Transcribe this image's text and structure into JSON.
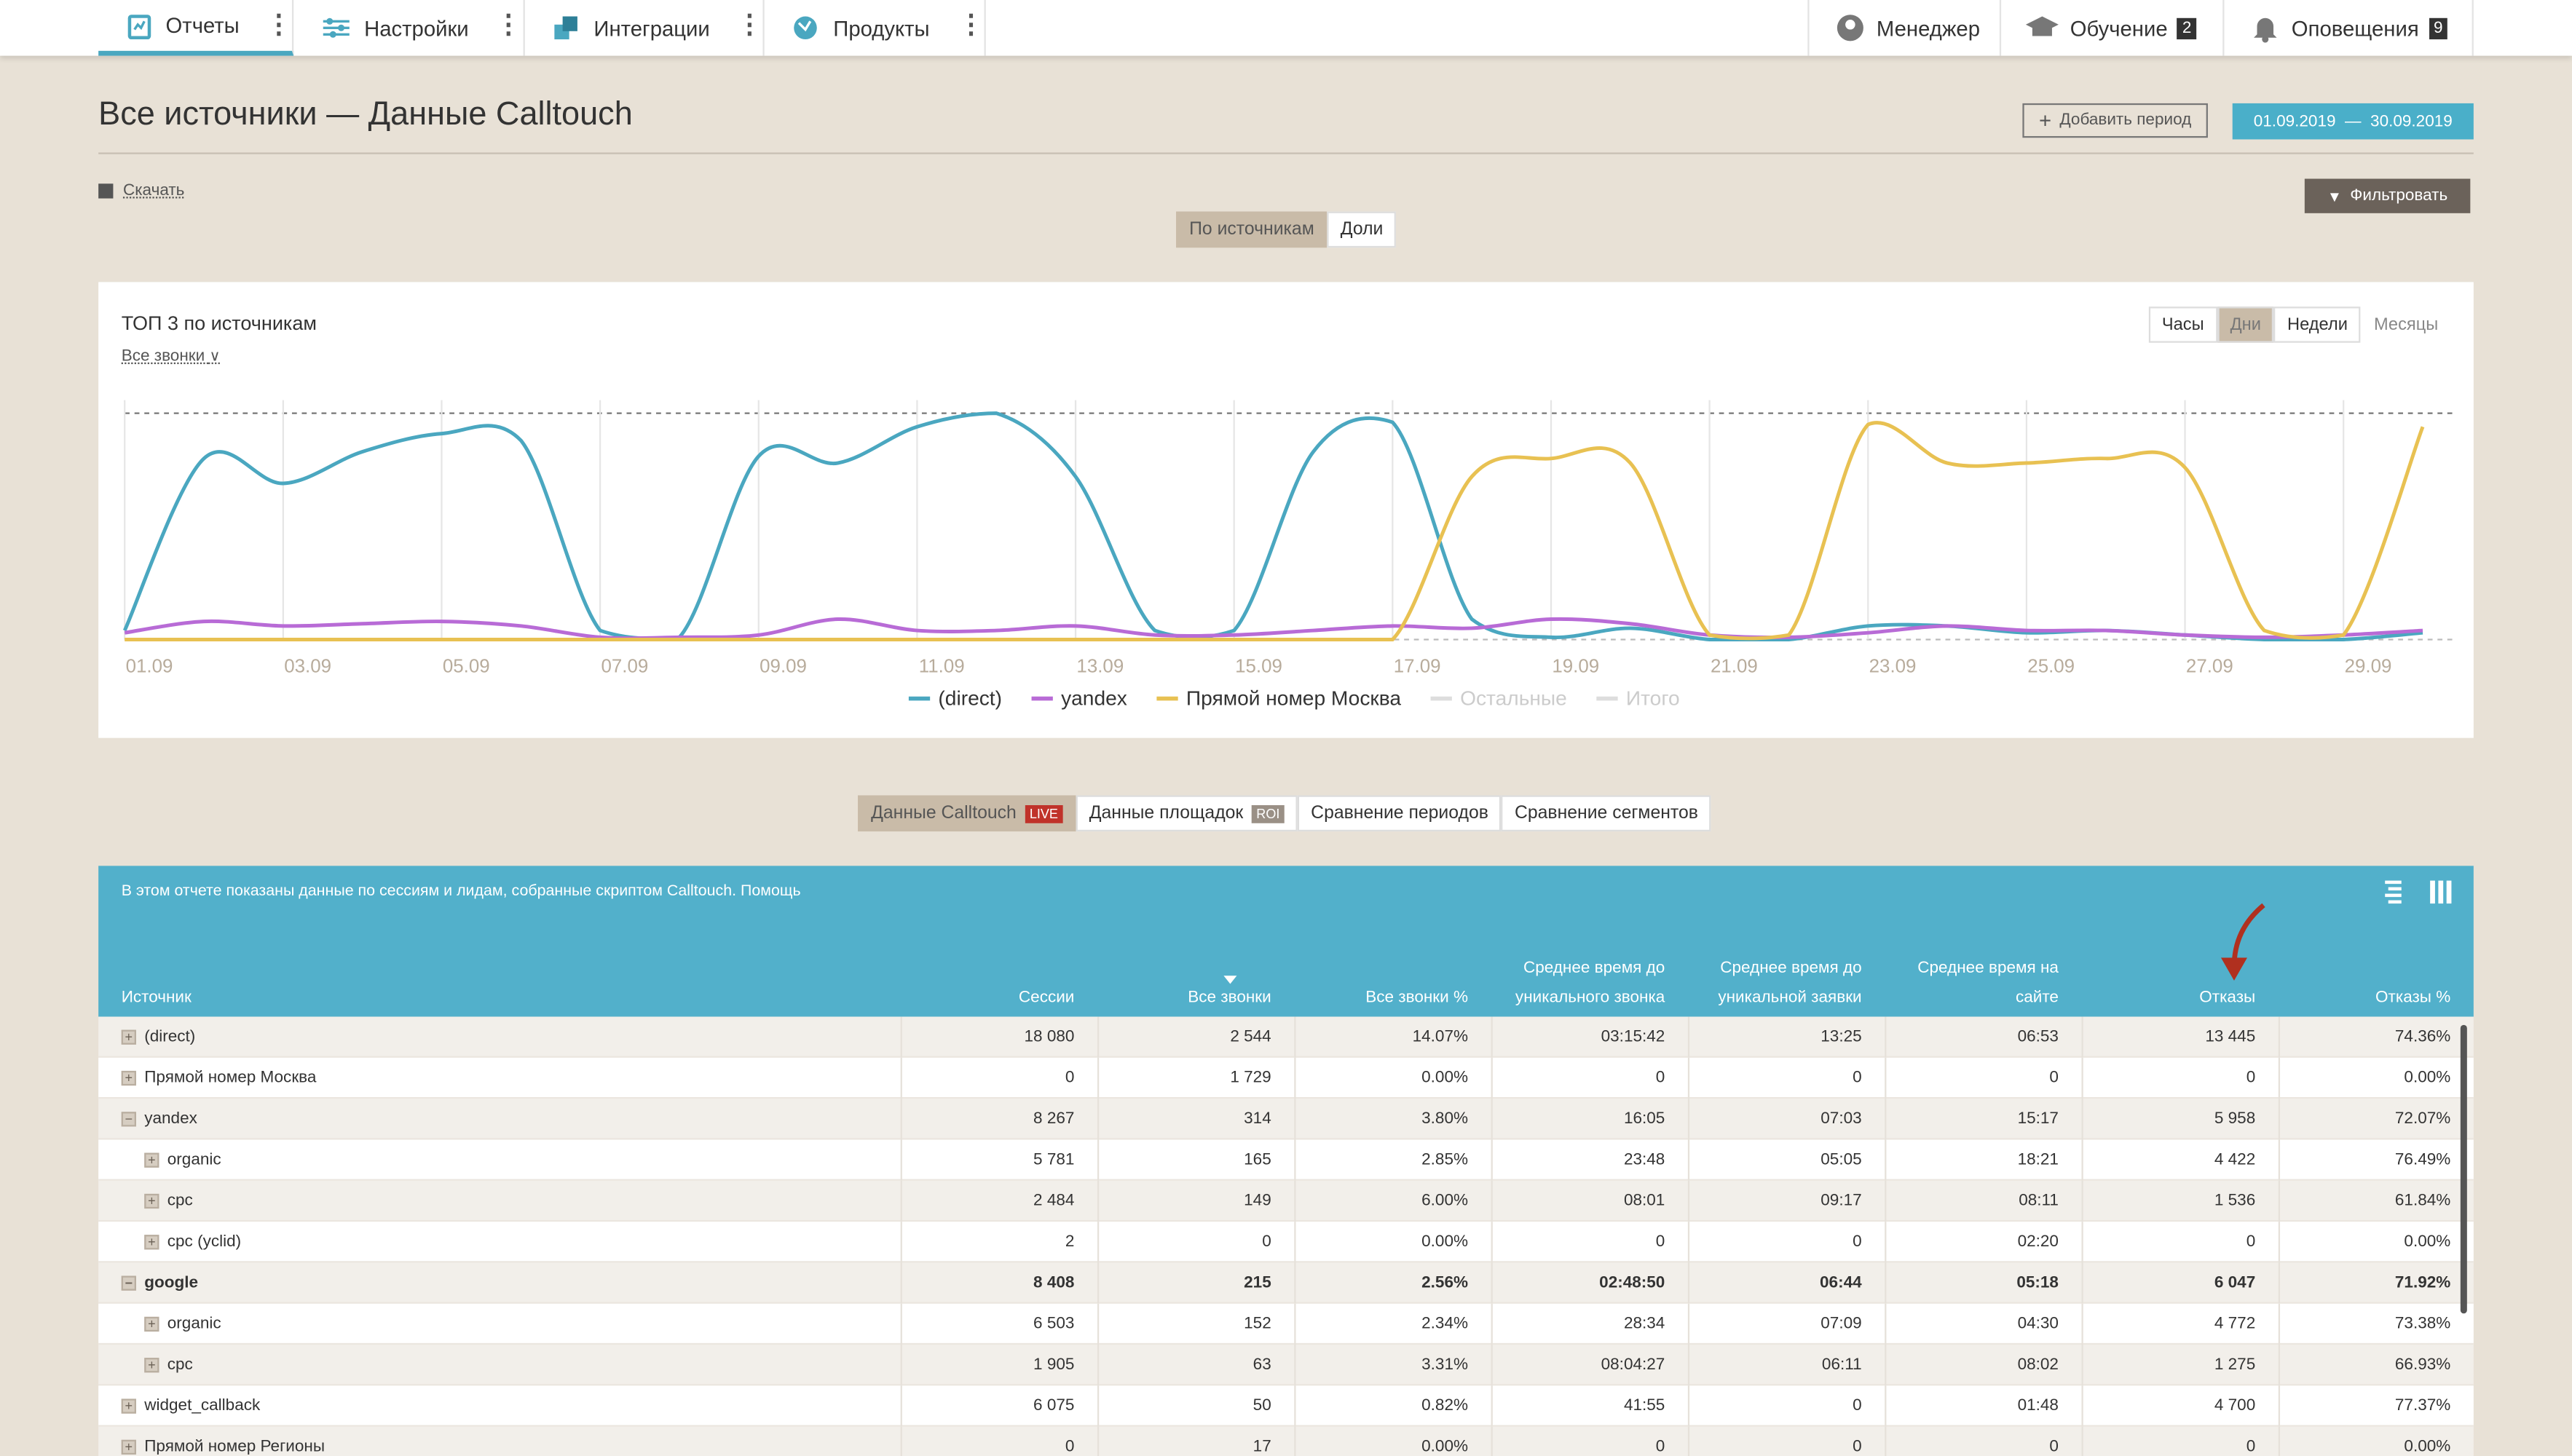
{
  "nav": {
    "left": [
      "Отчеты",
      "Настройки",
      "Интеграции",
      "Продукты"
    ],
    "right": [
      {
        "label": "Менеджер"
      },
      {
        "label": "Обучение",
        "badge": "2"
      },
      {
        "label": "Оповещения",
        "badge": "9"
      }
    ]
  },
  "header": {
    "title": "Все источники — Данные Calltouch",
    "add_period": "Добавить период",
    "date_range": "01.09.2019  —  30.09.2019",
    "download": "Скачать",
    "filter": "Фильтровать"
  },
  "view_tabs": {
    "items": [
      "По источникам",
      "Доли"
    ],
    "active": 0
  },
  "chart_data": {
    "type": "line",
    "title": "ТОП 3 по источникам",
    "subtitle": "Все звонки",
    "granularity": {
      "items": [
        "Часы",
        "Дни",
        "Недели",
        "Месяцы"
      ],
      "active": 1
    },
    "categories": [
      "01.09",
      null,
      "03.09",
      null,
      "05.09",
      null,
      "07.09",
      null,
      "09.09",
      null,
      "11.09",
      null,
      "13.09",
      null,
      "15.09",
      null,
      "17.09",
      null,
      "19.09",
      null,
      "21.09",
      null,
      "23.09",
      null,
      "25.09",
      null,
      "27.09",
      null,
      "29.09",
      null
    ],
    "ylim": [
      0,
      100
    ],
    "series": [
      {
        "name": "(direct)",
        "color": "#4aa7c0",
        "values": [
          4,
          80,
          69,
          83,
          91,
          88,
          4,
          1,
          81,
          78,
          94,
          100,
          72,
          4,
          4,
          83,
          96,
          9,
          1,
          5,
          0,
          0,
          6,
          6,
          3,
          4,
          2,
          0,
          0,
          3
        ]
      },
      {
        "name": "yandex",
        "color": "#b86bd6",
        "values": [
          3,
          8,
          6,
          7,
          8,
          6,
          1,
          1,
          2,
          9,
          4,
          4,
          6,
          2,
          2,
          4,
          6,
          5,
          9,
          7,
          2,
          1,
          3,
          6,
          4,
          4,
          2,
          1,
          2,
          4
        ]
      },
      {
        "name": "Прямой номер Москва",
        "color": "#e8c152",
        "values": [
          0,
          0,
          0,
          0,
          0,
          0,
          0,
          0,
          0,
          0,
          0,
          0,
          0,
          0,
          0,
          0,
          0,
          72,
          80,
          78,
          2,
          2,
          95,
          78,
          78,
          80,
          76,
          4,
          2,
          94
        ]
      }
    ],
    "legend_disabled": [
      "Остальные",
      "Итого"
    ]
  },
  "report_tabs": [
    {
      "label": "Данные Calltouch",
      "badge": "LIVE"
    },
    {
      "label": "Данные площадок",
      "badge": "ROI"
    },
    {
      "label": "Сравнение периодов"
    },
    {
      "label": "Сравнение сегментов"
    }
  ],
  "table": {
    "info": "В этом отчете показаны данные по сессиям и лидам, собранные скриптом Calltouch.",
    "help": "Помощь",
    "columns": [
      "Источник",
      "Сессии",
      "Все звонки",
      "Все звонки %",
      "Среднее время до уникального звонка",
      "Среднее время до уникальной заявки",
      "Среднее время на сайте",
      "Отказы",
      "Отказы %"
    ],
    "rows": [
      {
        "level": 0,
        "expanded": false,
        "bold": false,
        "cells": [
          "(direct)",
          "18 080",
          "2 544",
          "14.07%",
          "03:15:42",
          "13:25",
          "06:53",
          "13 445",
          "74.36%"
        ]
      },
      {
        "level": 0,
        "expanded": false,
        "bold": false,
        "cells": [
          "Прямой номер Москва",
          "0",
          "1 729",
          "0.00%",
          "0",
          "0",
          "0",
          "0",
          "0.00%"
        ]
      },
      {
        "level": 0,
        "expanded": true,
        "bold": false,
        "cells": [
          "yandex",
          "8 267",
          "314",
          "3.80%",
          "16:05",
          "07:03",
          "15:17",
          "5 958",
          "72.07%"
        ]
      },
      {
        "level": 1,
        "expanded": false,
        "bold": false,
        "cells": [
          "organic",
          "5 781",
          "165",
          "2.85%",
          "23:48",
          "05:05",
          "18:21",
          "4 422",
          "76.49%"
        ]
      },
      {
        "level": 1,
        "expanded": false,
        "bold": false,
        "cells": [
          "cpc",
          "2 484",
          "149",
          "6.00%",
          "08:01",
          "09:17",
          "08:11",
          "1 536",
          "61.84%"
        ]
      },
      {
        "level": 1,
        "expanded": false,
        "bold": false,
        "cells": [
          "cpc (yclid)",
          "2",
          "0",
          "0.00%",
          "0",
          "0",
          "02:20",
          "0",
          "0.00%"
        ]
      },
      {
        "level": 0,
        "expanded": true,
        "bold": true,
        "cells": [
          "google",
          "8 408",
          "215",
          "2.56%",
          "02:48:50",
          "06:44",
          "05:18",
          "6 047",
          "71.92%"
        ]
      },
      {
        "level": 1,
        "expanded": false,
        "bold": false,
        "cells": [
          "organic",
          "6 503",
          "152",
          "2.34%",
          "28:34",
          "07:09",
          "04:30",
          "4 772",
          "73.38%"
        ]
      },
      {
        "level": 1,
        "expanded": false,
        "bold": false,
        "cells": [
          "cpc",
          "1 905",
          "63",
          "3.31%",
          "08:04:27",
          "06:11",
          "08:02",
          "1 275",
          "66.93%"
        ]
      },
      {
        "level": 0,
        "expanded": false,
        "bold": false,
        "cells": [
          "widget_callback",
          "6 075",
          "50",
          "0.82%",
          "41:55",
          "0",
          "01:48",
          "4 700",
          "77.37%"
        ]
      },
      {
        "level": 0,
        "expanded": false,
        "bold": false,
        "cells": [
          "Прямой номер Регионы",
          "0",
          "17",
          "0.00%",
          "0",
          "0",
          "0",
          "0",
          "0.00%"
        ]
      }
    ]
  }
}
